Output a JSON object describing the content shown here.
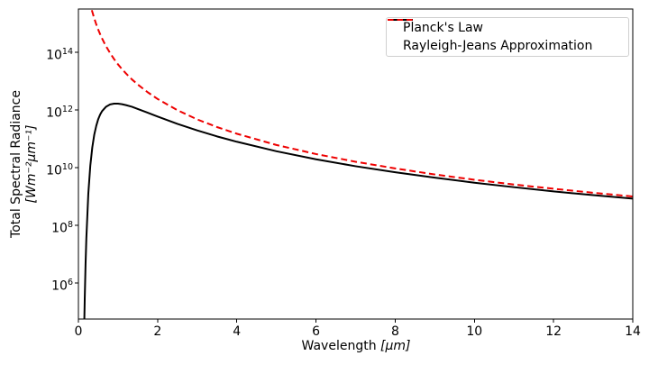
{
  "colors": {
    "planck": "#000000",
    "rayleigh_jeans": "#ee0000",
    "axis": "#000000",
    "legend_border": "#cfcfcf",
    "background": "#ffffff"
  },
  "chart_data": {
    "type": "line",
    "title": "",
    "xlabel": "Wavelength [μm]",
    "xlabel_prefix": "Wavelength ",
    "xlabel_unit": "[μm]",
    "ylabel": "Total Spectral Radiance [Wm⁻²μm⁻¹]",
    "ylabel_line1": "Total Spectral Radiance",
    "ylabel_line2": "[Wm⁻²μm⁻¹]",
    "x_axis": {
      "min": 0,
      "max": 14,
      "ticks": [
        0,
        2,
        4,
        6,
        8,
        10,
        12,
        14
      ],
      "grid": false
    },
    "y_axis": {
      "scale": "log",
      "min_exp": 4.75,
      "max_exp": 15.5,
      "tick_base": 10,
      "tick_exps": [
        6,
        8,
        10,
        12,
        14
      ],
      "grid": false
    },
    "legend": {
      "position": "upper right",
      "entries": [
        {
          "label": "Planck's Law",
          "color": "#000000",
          "style": "solid"
        },
        {
          "label": "Rayleigh-Jeans Approximation",
          "color": "#ee0000",
          "style": "dashed"
        }
      ]
    },
    "series": [
      {
        "name": "Planck's Law",
        "color": "#000000",
        "style": "solid",
        "x": [
          0.13,
          0.14,
          0.15,
          0.16,
          0.18,
          0.2,
          0.25,
          0.3,
          0.35,
          0.4,
          0.45,
          0.5,
          0.55,
          0.6,
          0.7,
          0.8,
          0.9,
          1.0,
          1.1,
          1.2,
          1.35,
          1.5,
          1.75,
          2.0,
          2.5,
          3.0,
          3.5,
          4.0,
          5.0,
          6.0,
          7.0,
          8.0,
          9.0,
          10,
          11,
          12,
          13,
          14
        ],
        "y": [
          970.0,
          8800.0,
          59000.0,
          300000.0,
          4400000.0,
          35000000.0,
          1260000000.0,
          11600000000.0,
          50000000000.0,
          139000000000.0,
          280000000000.0,
          480000000000.0,
          700000000000.0,
          920000000000.0,
          1300000000000.0,
          1550000000000.0,
          1650000000000.0,
          1650000000000.0,
          1580000000000.0,
          1470000000000.0,
          1290000000000.0,
          1080000000000.0,
          800000000000.0,
          590000000000.0,
          330000000000.0,
          195000000000.0,
          121000000000.0,
          79000000000.0,
          37000000000.0,
          19500000000.0,
          11200000000.0,
          6900000000.0,
          4500000000.0,
          3000000000.0,
          2100000000.0,
          1500000000.0,
          1110000000.0,
          840000000.0
        ]
      },
      {
        "name": "Rayleigh-Jeans Approximation",
        "color": "#ee0000",
        "style": "dashed",
        "x": [
          0.28,
          0.3,
          0.32,
          0.35,
          0.4,
          0.45,
          0.5,
          0.55,
          0.6,
          0.65,
          0.7,
          0.8,
          0.9,
          1.0,
          1.1,
          1.2,
          1.35,
          1.5,
          1.75,
          2.0,
          2.5,
          3.0,
          3.5,
          4.0,
          5.0,
          6.0,
          7.0,
          8.0,
          9.0,
          10,
          11,
          12,
          13,
          14
        ],
        "y": [
          6200000000000000.0,
          4700000000000000.0,
          3700000000000000.0,
          2550000000000000.0,
          1500000000000000.0,
          930000000000000.0,
          610000000000000.0,
          420000000000000.0,
          296000000000000.0,
          215000000000000.0,
          160000000000000.0,
          94000000000000.0,
          58000000000000.0,
          38000000000000.0,
          26000000000000.0,
          18500000000000.0,
          11500000000000.0,
          7600000000000.0,
          4100000000000.0,
          2400000000000.0,
          980000000000.0,
          470000000000.0,
          255000000000.0,
          150000000000.0,
          61000000000.0,
          29600000000.0,
          16000000000.0,
          9400000000.0,
          5800000000.0,
          3800000000.0,
          2600000000.0,
          1850000000.0,
          1340000000.0,
          1000000000.0
        ]
      }
    ]
  }
}
